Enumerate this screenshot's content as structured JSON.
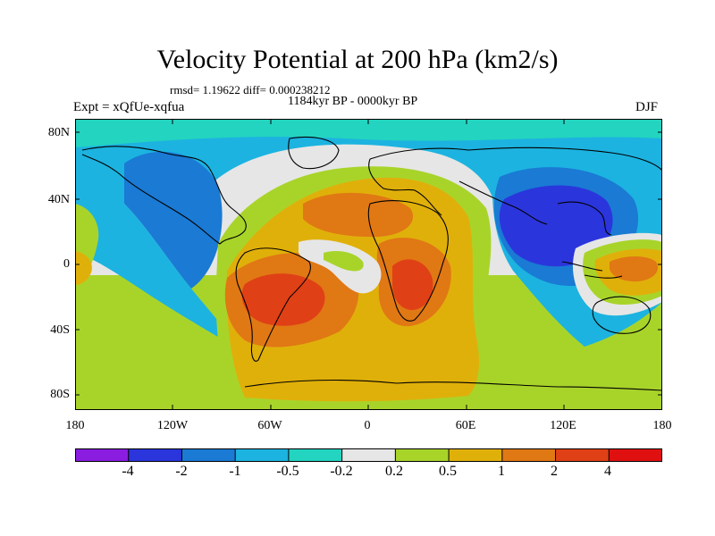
{
  "header": {
    "title": "Velocity Potential at 200 hPa (km2/s)",
    "stats": "rmsd= 1.19622  diff= 0.000238212",
    "period": "1184kyr BP - 0000kyr BP",
    "experiment": "Expt = xQfUe-xqfua",
    "season": "DJF"
  },
  "axes": {
    "lat_labels": [
      "80N",
      "40N",
      "0",
      "40S",
      "80S"
    ],
    "lon_labels": [
      "180",
      "120W",
      "60W",
      "0",
      "60E",
      "120E",
      "180"
    ]
  },
  "colorbar": {
    "labels": [
      "-4",
      "-2",
      "-1",
      "-0.5",
      "-0.2",
      "0.2",
      "0.5",
      "1",
      "2",
      "4"
    ],
    "colors": [
      "#8a1de0",
      "#2b35dc",
      "#1a7ad4",
      "#1cb3e0",
      "#23d4c0",
      "#e6e6e6",
      "#a8d42a",
      "#e0b00a",
      "#e07814",
      "#e04016",
      "#e01010"
    ]
  },
  "palette": {
    "deep_blue": "#2b35dc",
    "mid_blue": "#1a7ad4",
    "light_blue": "#1cb3e0",
    "cyan": "#23d4c0",
    "neutral": "#e6e6e6",
    "green": "#a8d42a",
    "yellow": "#e0b00a",
    "orange": "#e07814",
    "red_orange": "#e04016"
  }
}
